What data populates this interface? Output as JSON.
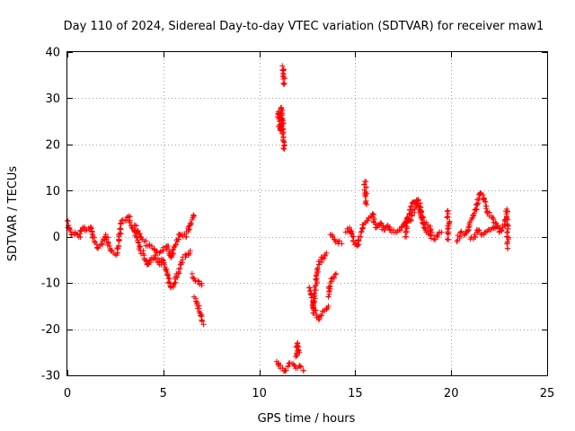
{
  "chart_data": {
    "type": "scatter",
    "title": "Day 110 of 2024, Sidereal Day-to-day VTEC variation (SDTVAR) for receiver maw1",
    "xlabel": "GPS time / hours",
    "ylabel": "SDTVAR / TECUs",
    "xlim": [
      0,
      25
    ],
    "ylim": [
      -30,
      40
    ],
    "xticks": [
      0,
      5,
      10,
      15,
      20,
      25
    ],
    "yticks": [
      -30,
      -20,
      -10,
      0,
      10,
      20,
      30,
      40
    ],
    "xtick_labels": [
      "0",
      "5",
      "10",
      "15",
      "20",
      "25"
    ],
    "ytick_labels": [
      "-30",
      "-20",
      "-10",
      "0",
      "10",
      "20",
      "30",
      "40"
    ],
    "grid": true,
    "marker": "+",
    "color": "#ff0000",
    "series": [
      {
        "name": "maw1",
        "segments": [
          [
            [
              0.0,
              3.5
            ],
            [
              0.1,
              1.5
            ],
            [
              0.2,
              0.5
            ],
            [
              0.4,
              1.0
            ],
            [
              0.6,
              0.0
            ],
            [
              0.8,
              2.0
            ],
            [
              1.0,
              1.5
            ],
            [
              1.2,
              2.0
            ],
            [
              1.4,
              -1.0
            ],
            [
              1.6,
              -2.5
            ],
            [
              1.8,
              -1.5
            ],
            [
              2.0,
              0.5
            ],
            [
              2.2,
              -2.0
            ],
            [
              2.4,
              -3.5
            ],
            [
              2.6,
              -3.5
            ],
            [
              2.8,
              3.0
            ],
            [
              3.0,
              3.5
            ],
            [
              3.2,
              4.5
            ],
            [
              3.4,
              2.0
            ],
            [
              3.6,
              0.0
            ],
            [
              3.8,
              -3.0
            ],
            [
              4.0,
              -4.0
            ],
            [
              4.2,
              -6.0
            ],
            [
              4.4,
              -4.5
            ],
            [
              4.6,
              -4.0
            ],
            [
              4.8,
              -6.0
            ],
            [
              5.0,
              -5.0
            ],
            [
              5.2,
              -8.0
            ],
            [
              5.4,
              -11.0
            ],
            [
              5.6,
              -10.0
            ],
            [
              5.8,
              -7.0
            ],
            [
              6.0,
              -5.0
            ],
            [
              6.2,
              -4.0
            ],
            [
              6.4,
              -3.0
            ]
          ],
          [
            [
              3.5,
              2.5
            ],
            [
              3.8,
              0.0
            ],
            [
              4.0,
              -1.0
            ],
            [
              4.2,
              -2.0
            ],
            [
              4.4,
              -2.0
            ],
            [
              4.6,
              -3.0
            ],
            [
              4.8,
              -3.5
            ],
            [
              5.0,
              -3.0
            ],
            [
              5.2,
              -2.0
            ],
            [
              5.4,
              -4.5
            ],
            [
              5.6,
              -2.0
            ],
            [
              5.8,
              0.5
            ],
            [
              6.0,
              0.5
            ],
            [
              6.2,
              0.0
            ],
            [
              6.4,
              3.0
            ],
            [
              6.6,
              4.5
            ]
          ],
          [
            [
              6.6,
              -13.0
            ],
            [
              6.7,
              -14.0
            ],
            [
              6.8,
              -15.0
            ],
            [
              6.9,
              -16.5
            ],
            [
              7.0,
              -18.0
            ],
            [
              7.1,
              -19.0
            ]
          ],
          [
            [
              6.5,
              -8.0
            ],
            [
              6.6,
              -9.0
            ],
            [
              6.8,
              -9.5
            ],
            [
              7.0,
              -10.5
            ]
          ],
          [
            [
              10.95,
              26.0
            ],
            [
              11.0,
              27.0
            ],
            [
              11.05,
              25.0
            ],
            [
              11.1,
              23.0
            ],
            [
              11.15,
              28.0
            ],
            [
              11.2,
              24.0
            ],
            [
              11.25,
              21.0
            ],
            [
              11.3,
              19.0
            ]
          ],
          [
            [
              11.2,
              37.0
            ],
            [
              11.25,
              36.0
            ],
            [
              11.3,
              33.0
            ]
          ],
          [
            [
              10.9,
              -27.0
            ],
            [
              11.1,
              -28.5
            ],
            [
              11.3,
              -29.0
            ],
            [
              11.5,
              -28.0
            ],
            [
              11.7,
              -27.5
            ],
            [
              11.9,
              -28.5
            ],
            [
              12.1,
              -28.0
            ],
            [
              12.3,
              -29.0
            ]
          ],
          [
            [
              11.9,
              -26.0
            ],
            [
              12.0,
              -23.0
            ],
            [
              12.1,
              -25.0
            ]
          ],
          [
            [
              12.6,
              -11.0
            ],
            [
              12.8,
              -14.0
            ],
            [
              12.9,
              -16.0
            ],
            [
              13.0,
              -17.0
            ],
            [
              13.1,
              -18.0
            ],
            [
              13.2,
              -17.0
            ],
            [
              13.4,
              -16.0
            ],
            [
              13.6,
              -15.0
            ]
          ],
          [
            [
              12.8,
              -16.5
            ],
            [
              13.0,
              -8.0
            ],
            [
              13.1,
              -6.0
            ],
            [
              13.3,
              -4.5
            ],
            [
              13.5,
              -3.5
            ]
          ],
          [
            [
              13.6,
              -13.0
            ],
            [
              13.7,
              -10.0
            ],
            [
              13.9,
              -9.0
            ],
            [
              14.0,
              -8.0
            ]
          ],
          [
            [
              13.7,
              0.5
            ],
            [
              13.9,
              -0.5
            ],
            [
              14.1,
              -1.0
            ],
            [
              14.3,
              -1.5
            ]
          ],
          [
            [
              14.5,
              1.0
            ],
            [
              14.7,
              2.0
            ],
            [
              14.9,
              -1.0
            ],
            [
              15.1,
              -2.0
            ],
            [
              15.3,
              1.0
            ],
            [
              15.5,
              3.0
            ],
            [
              15.7,
              4.0
            ],
            [
              15.9,
              5.0
            ],
            [
              16.1,
              2.0
            ],
            [
              16.3,
              3.0
            ],
            [
              16.5,
              1.5
            ],
            [
              16.7,
              2.5
            ],
            [
              16.9,
              1.0
            ],
            [
              17.1,
              1.0
            ],
            [
              17.3,
              1.5
            ],
            [
              17.5,
              2.5
            ],
            [
              17.7,
              4.0
            ],
            [
              17.9,
              3.5
            ],
            [
              18.1,
              6.0
            ],
            [
              18.3,
              8.0
            ],
            [
              18.5,
              3.0
            ],
            [
              18.7,
              1.0
            ],
            [
              18.9,
              0.5
            ],
            [
              19.1,
              -0.5
            ],
            [
              19.3,
              0.5
            ],
            [
              19.5,
              1.0
            ]
          ],
          [
            [
              15.5,
              12.0
            ],
            [
              15.55,
              9.0
            ],
            [
              15.6,
              7.0
            ]
          ],
          [
            [
              17.6,
              0.0
            ],
            [
              17.8,
              5.0
            ],
            [
              18.0,
              7.5
            ],
            [
              18.2,
              8.0
            ],
            [
              18.4,
              5.0
            ],
            [
              18.6,
              3.0
            ],
            [
              18.8,
              2.5
            ],
            [
              19.0,
              1.0
            ]
          ],
          [
            [
              19.8,
              5.5
            ],
            [
              19.9,
              3.0
            ],
            [
              19.8,
              -0.5
            ]
          ],
          [
            [
              20.3,
              -1.0
            ],
            [
              20.5,
              1.0
            ],
            [
              20.7,
              0.5
            ],
            [
              20.9,
              2.0
            ],
            [
              21.1,
              4.0
            ],
            [
              21.3,
              6.0
            ],
            [
              21.5,
              9.5
            ],
            [
              21.7,
              8.0
            ],
            [
              21.9,
              5.0
            ],
            [
              22.1,
              4.5
            ],
            [
              22.3,
              3.0
            ],
            [
              22.5,
              1.0
            ],
            [
              22.7,
              2.0
            ],
            [
              22.9,
              4.0
            ]
          ],
          [
            [
              21.0,
              -0.5
            ],
            [
              21.2,
              0.0
            ],
            [
              21.4,
              1.5
            ],
            [
              21.6,
              0.5
            ],
            [
              21.8,
              1.0
            ],
            [
              22.0,
              1.5
            ],
            [
              22.2,
              2.0
            ],
            [
              22.4,
              2.5
            ]
          ],
          [
            [
              22.9,
              6.0
            ],
            [
              22.95,
              -2.5
            ]
          ]
        ]
      }
    ]
  }
}
